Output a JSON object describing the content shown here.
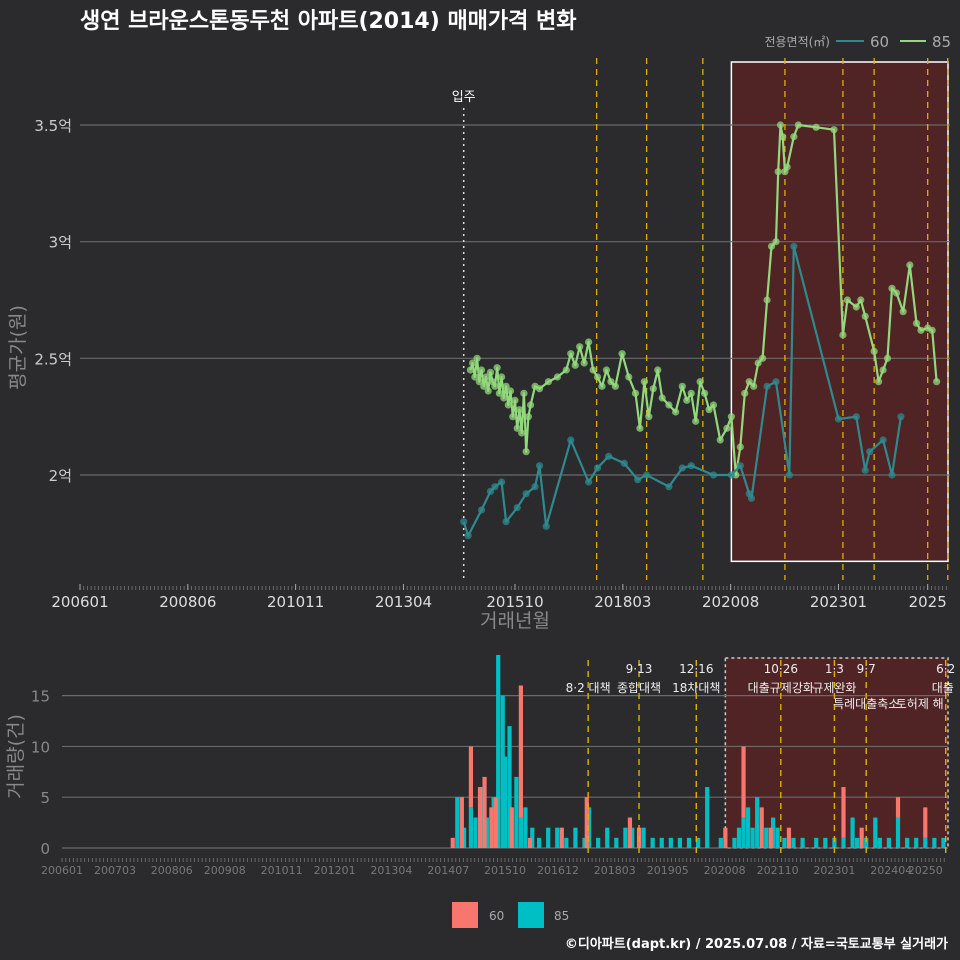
{
  "title": "생연 브라운스톤동두천 아파트(2014) 매매가격 변화",
  "legend": {
    "title": "전용면적(㎡)",
    "items": [
      {
        "label": "60",
        "color": "#2e8a8e"
      },
      {
        "label": "85",
        "color": "#93d87c"
      }
    ]
  },
  "footer": "©디아파트(dapt.kr) / 2025.07.08 / 자료=국토교통부 실거래가",
  "colors": {
    "bg": "#2b2b2d",
    "s60": "#2e8a8e",
    "s85": "#93d87c",
    "bar60": "#f7766d",
    "bar85": "#00bfc4",
    "policy": "#e0b000",
    "highlight": "#5a2222"
  },
  "chart_data": [
    {
      "type": "line",
      "xlabel": "거래년월",
      "ylabel": "평균가(원)",
      "x_ticks": [
        "200601",
        "200806",
        "201011",
        "201304",
        "201510",
        "201803",
        "202008",
        "202301",
        "2025"
      ],
      "y_ticks": [
        "2억",
        "2.5억",
        "3억",
        "3.5억"
      ],
      "y_tick_values": [
        2.0,
        2.5,
        3.0,
        3.5
      ],
      "ylim": [
        1.55,
        3.8
      ],
      "xlim": [
        2006.0,
        2025.5
      ],
      "annotation": "입주",
      "move_in": 2014.6,
      "policy_lines": [
        2017.58,
        2018.7,
        2019.96,
        2021.8,
        2023.1,
        2023.8,
        2025.0,
        2025.45
      ],
      "highlight_range": [
        2020.6,
        2025.5
      ],
      "series": [
        {
          "name": "85",
          "points": [
            [
              2014.75,
              2.45
            ],
            [
              2014.8,
              2.48
            ],
            [
              2014.85,
              2.42
            ],
            [
              2014.9,
              2.5
            ],
            [
              2014.95,
              2.4
            ],
            [
              2015.0,
              2.45
            ],
            [
              2015.05,
              2.38
            ],
            [
              2015.1,
              2.42
            ],
            [
              2015.15,
              2.36
            ],
            [
              2015.2,
              2.44
            ],
            [
              2015.25,
              2.4
            ],
            [
              2015.3,
              2.38
            ],
            [
              2015.35,
              2.46
            ],
            [
              2015.4,
              2.35
            ],
            [
              2015.45,
              2.42
            ],
            [
              2015.5,
              2.33
            ],
            [
              2015.55,
              2.38
            ],
            [
              2015.6,
              2.3
            ],
            [
              2015.65,
              2.36
            ],
            [
              2015.7,
              2.25
            ],
            [
              2015.75,
              2.32
            ],
            [
              2015.8,
              2.2
            ],
            [
              2015.85,
              2.28
            ],
            [
              2015.9,
              2.18
            ],
            [
              2015.95,
              2.35
            ],
            [
              2016.0,
              2.1
            ],
            [
              2016.05,
              2.25
            ],
            [
              2016.1,
              2.3
            ],
            [
              2016.2,
              2.38
            ],
            [
              2016.3,
              2.37
            ],
            [
              2016.5,
              2.4
            ],
            [
              2016.7,
              2.42
            ],
            [
              2016.9,
              2.45
            ],
            [
              2017.0,
              2.52
            ],
            [
              2017.1,
              2.47
            ],
            [
              2017.2,
              2.55
            ],
            [
              2017.3,
              2.48
            ],
            [
              2017.4,
              2.57
            ],
            [
              2017.5,
              2.45
            ],
            [
              2017.6,
              2.42
            ],
            [
              2017.7,
              2.38
            ],
            [
              2017.8,
              2.45
            ],
            [
              2017.9,
              2.4
            ],
            [
              2018.0,
              2.38
            ],
            [
              2018.15,
              2.52
            ],
            [
              2018.3,
              2.42
            ],
            [
              2018.45,
              2.35
            ],
            [
              2018.55,
              2.2
            ],
            [
              2018.65,
              2.4
            ],
            [
              2018.75,
              2.25
            ],
            [
              2018.85,
              2.37
            ],
            [
              2018.95,
              2.45
            ],
            [
              2019.05,
              2.33
            ],
            [
              2019.2,
              2.3
            ],
            [
              2019.35,
              2.27
            ],
            [
              2019.5,
              2.38
            ],
            [
              2019.6,
              2.32
            ],
            [
              2019.7,
              2.35
            ],
            [
              2019.8,
              2.23
            ],
            [
              2019.9,
              2.4
            ],
            [
              2020.0,
              2.35
            ],
            [
              2020.1,
              2.28
            ],
            [
              2020.2,
              2.3
            ],
            [
              2020.35,
              2.15
            ],
            [
              2020.5,
              2.2
            ],
            [
              2020.6,
              2.25
            ],
            [
              2020.7,
              2.0
            ],
            [
              2020.8,
              2.12
            ],
            [
              2020.9,
              2.35
            ],
            [
              2021.0,
              2.4
            ],
            [
              2021.1,
              2.38
            ],
            [
              2021.2,
              2.48
            ],
            [
              2021.3,
              2.5
            ],
            [
              2021.4,
              2.75
            ],
            [
              2021.5,
              2.98
            ],
            [
              2021.6,
              3.0
            ],
            [
              2021.65,
              3.3
            ],
            [
              2021.7,
              3.5
            ],
            [
              2021.75,
              3.45
            ],
            [
              2021.8,
              3.3
            ],
            [
              2021.85,
              3.32
            ],
            [
              2022.0,
              3.45
            ],
            [
              2022.1,
              3.5
            ],
            [
              2022.5,
              3.49
            ],
            [
              2022.9,
              3.48
            ],
            [
              2023.1,
              2.6
            ],
            [
              2023.2,
              2.75
            ],
            [
              2023.4,
              2.72
            ],
            [
              2023.5,
              2.75
            ],
            [
              2023.6,
              2.68
            ],
            [
              2023.8,
              2.53
            ],
            [
              2023.9,
              2.4
            ],
            [
              2024.0,
              2.45
            ],
            [
              2024.1,
              2.5
            ],
            [
              2024.2,
              2.8
            ],
            [
              2024.3,
              2.78
            ],
            [
              2024.45,
              2.7
            ],
            [
              2024.6,
              2.9
            ],
            [
              2024.75,
              2.65
            ],
            [
              2024.85,
              2.62
            ],
            [
              2025.0,
              2.63
            ],
            [
              2025.1,
              2.62
            ],
            [
              2025.2,
              2.4
            ]
          ]
        },
        {
          "name": "60",
          "points": [
            [
              2014.6,
              1.8
            ],
            [
              2014.7,
              1.74
            ],
            [
              2015.0,
              1.85
            ],
            [
              2015.2,
              1.93
            ],
            [
              2015.3,
              1.95
            ],
            [
              2015.45,
              1.97
            ],
            [
              2015.55,
              1.8
            ],
            [
              2015.8,
              1.86
            ],
            [
              2016.0,
              1.92
            ],
            [
              2016.2,
              1.95
            ],
            [
              2016.3,
              2.04
            ],
            [
              2016.45,
              1.78
            ],
            [
              2017.0,
              2.15
            ],
            [
              2017.4,
              1.97
            ],
            [
              2017.6,
              2.03
            ],
            [
              2017.85,
              2.08
            ],
            [
              2018.2,
              2.05
            ],
            [
              2018.5,
              1.98
            ],
            [
              2018.7,
              2.0
            ],
            [
              2019.2,
              1.95
            ],
            [
              2019.5,
              2.03
            ],
            [
              2019.7,
              2.04
            ],
            [
              2020.2,
              2.0
            ],
            [
              2020.6,
              2.0
            ],
            [
              2020.8,
              2.04
            ],
            [
              2021.0,
              1.92
            ],
            [
              2021.05,
              1.9
            ],
            [
              2021.4,
              2.38
            ],
            [
              2021.6,
              2.4
            ],
            [
              2021.9,
              2.0
            ],
            [
              2022.0,
              2.98
            ],
            [
              2023.0,
              2.24
            ],
            [
              2023.4,
              2.25
            ],
            [
              2023.6,
              2.02
            ],
            [
              2023.7,
              2.1
            ],
            [
              2024.0,
              2.15
            ],
            [
              2024.2,
              2.0
            ],
            [
              2024.4,
              2.25
            ]
          ]
        }
      ]
    },
    {
      "type": "bar",
      "ylabel": "거래량(건)",
      "x_ticks": [
        "200601",
        "200703",
        "200806",
        "200908",
        "201011",
        "201201",
        "201304",
        "201407",
        "201510",
        "201612",
        "201803",
        "201905",
        "202008",
        "202110",
        "202301",
        "202404",
        "20250"
      ],
      "y_ticks": [
        "0",
        "5",
        "10",
        "15"
      ],
      "ylim": [
        0,
        19
      ],
      "policies": [
        {
          "date": 2017.58,
          "top": "",
          "bottom": "8·2 대책"
        },
        {
          "date": 2018.7,
          "top": "9·13",
          "bottom": "종합대책"
        },
        {
          "date": 2019.96,
          "top": "12·16",
          "bottom": "18차대책"
        },
        {
          "date": 2021.82,
          "top": "10·26",
          "bottom": "대출규제강화"
        },
        {
          "date": 2023.0,
          "top": "1·3",
          "bottom": "규제완화"
        },
        {
          "date": 2023.7,
          "top": "9·7",
          "bottom": "특례대출축소"
        },
        {
          "date": 2025.45,
          "top": "6·2",
          "bottom": "대출"
        }
      ],
      "policy_extra_label": "토허제 해",
      "highlight_range": [
        2020.6,
        2025.5
      ],
      "series": [
        {
          "name": "60",
          "values": [
            [
              2014.6,
              1
            ],
            [
              2014.8,
              5
            ],
            [
              2015.0,
              6
            ],
            [
              2015.2,
              6
            ],
            [
              2015.3,
              7
            ],
            [
              2015.45,
              4
            ],
            [
              2015.55,
              5
            ],
            [
              2015.9,
              4
            ],
            [
              2016.1,
              13
            ],
            [
              2016.3,
              1
            ],
            [
              2017.0,
              2
            ],
            [
              2017.55,
              5
            ],
            [
              2018.5,
              3
            ],
            [
              2018.7,
              2
            ],
            [
              2020.6,
              2
            ],
            [
              2021.0,
              7
            ],
            [
              2021.4,
              4
            ],
            [
              2021.6,
              2
            ],
            [
              2022.0,
              2
            ],
            [
              2023.2,
              5
            ],
            [
              2023.6,
              2
            ],
            [
              2024.4,
              2
            ],
            [
              2025.0,
              3
            ]
          ]
        },
        {
          "name": "85",
          "values": [
            [
              2014.7,
              5
            ],
            [
              2014.85,
              2
            ],
            [
              2015.0,
              4
            ],
            [
              2015.1,
              3
            ],
            [
              2015.25,
              6
            ],
            [
              2015.35,
              3
            ],
            [
              2015.5,
              5
            ],
            [
              2015.6,
              19
            ],
            [
              2015.7,
              15
            ],
            [
              2015.75,
              9
            ],
            [
              2015.85,
              12
            ],
            [
              2016.0,
              7
            ],
            [
              2016.1,
              3
            ],
            [
              2016.2,
              4
            ],
            [
              2016.35,
              2
            ],
            [
              2016.5,
              1
            ],
            [
              2016.7,
              2
            ],
            [
              2016.9,
              2
            ],
            [
              2017.1,
              1
            ],
            [
              2017.3,
              2
            ],
            [
              2017.5,
              1
            ],
            [
              2017.6,
              4
            ],
            [
              2017.8,
              1
            ],
            [
              2018.0,
              2
            ],
            [
              2018.2,
              1
            ],
            [
              2018.4,
              2
            ],
            [
              2018.55,
              2
            ],
            [
              2018.8,
              2
            ],
            [
              2019.0,
              1
            ],
            [
              2019.2,
              1
            ],
            [
              2019.4,
              1
            ],
            [
              2019.6,
              1
            ],
            [
              2019.8,
              1
            ],
            [
              2020.0,
              1
            ],
            [
              2020.2,
              6
            ],
            [
              2020.5,
              1
            ],
            [
              2020.8,
              1
            ],
            [
              2020.9,
              2
            ],
            [
              2021.0,
              3
            ],
            [
              2021.1,
              4
            ],
            [
              2021.2,
              2
            ],
            [
              2021.3,
              5
            ],
            [
              2021.5,
              2
            ],
            [
              2021.65,
              3
            ],
            [
              2021.75,
              2
            ],
            [
              2021.9,
              1
            ],
            [
              2022.1,
              1
            ],
            [
              2022.3,
              1
            ],
            [
              2022.6,
              1
            ],
            [
              2022.8,
              1
            ],
            [
              2023.0,
              1
            ],
            [
              2023.2,
              1
            ],
            [
              2023.4,
              3
            ],
            [
              2023.5,
              1
            ],
            [
              2023.7,
              1
            ],
            [
              2023.9,
              3
            ],
            [
              2024.0,
              1
            ],
            [
              2024.2,
              1
            ],
            [
              2024.4,
              3
            ],
            [
              2024.6,
              1
            ],
            [
              2024.8,
              1
            ],
            [
              2025.0,
              1
            ],
            [
              2025.2,
              1
            ],
            [
              2025.4,
              1
            ]
          ]
        }
      ]
    }
  ]
}
